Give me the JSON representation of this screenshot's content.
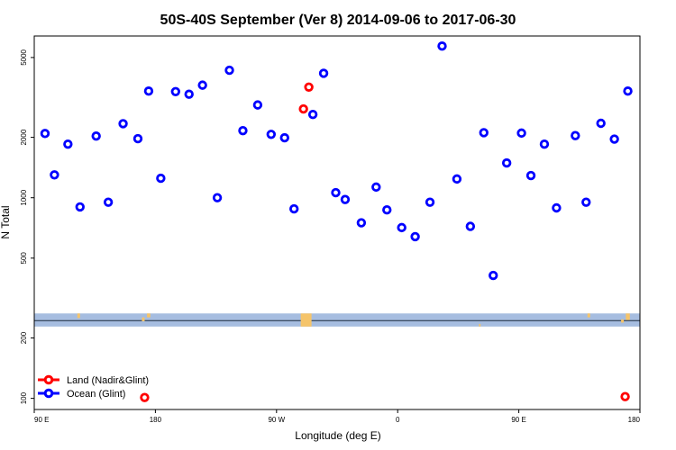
{
  "chart_data": {
    "type": "scatter",
    "title": "50S-40S September (Ver 8)   2014-09-06 to 2017-06-30",
    "xlabel": "Longitude (deg E)",
    "ylabel": "N Total",
    "x_ticks": [
      {
        "value": 90,
        "label": "90 E"
      },
      {
        "value": 180,
        "label": "180"
      },
      {
        "value": 270,
        "label": "90 W"
      },
      {
        "value": 360,
        "label": "0"
      },
      {
        "value": 450,
        "label": "90 E"
      },
      {
        "value": 540,
        "label": "180"
      }
    ],
    "xlim": [
      90,
      540
    ],
    "ylog": true,
    "ylim": [
      88,
      6400
    ],
    "y_ticks": [
      {
        "value": 100,
        "label": "100"
      },
      {
        "value": 200,
        "label": "200"
      },
      {
        "value": 500,
        "label": "500"
      },
      {
        "value": 1000,
        "label": "1000"
      },
      {
        "value": 2000,
        "label": "2000"
      },
      {
        "value": 5000,
        "label": "5000"
      }
    ],
    "map_strip": {
      "lat_range": "50S-40S",
      "y_range": [
        228,
        265
      ]
    },
    "legend": {
      "position": "bottom-left",
      "entries": [
        {
          "label": "Land (Nadir&Glint)",
          "color": "#ff0000"
        },
        {
          "label": "Ocean (Glint)",
          "color": "#0000ff"
        }
      ]
    },
    "series": [
      {
        "name": "Ocean (Glint)",
        "color": "#0000ff",
        "points": [
          {
            "x": 98,
            "y": 2090
          },
          {
            "x": 105,
            "y": 1300
          },
          {
            "x": 115,
            "y": 1850
          },
          {
            "x": 124,
            "y": 900
          },
          {
            "x": 136,
            "y": 2030
          },
          {
            "x": 145,
            "y": 950
          },
          {
            "x": 156,
            "y": 2340
          },
          {
            "x": 167,
            "y": 1970
          },
          {
            "x": 175,
            "y": 3400
          },
          {
            "x": 184,
            "y": 1250
          },
          {
            "x": 195,
            "y": 3380
          },
          {
            "x": 205,
            "y": 3280
          },
          {
            "x": 215,
            "y": 3640
          },
          {
            "x": 226,
            "y": 1000
          },
          {
            "x": 235,
            "y": 4320
          },
          {
            "x": 245,
            "y": 2160
          },
          {
            "x": 256,
            "y": 2900
          },
          {
            "x": 266,
            "y": 2070
          },
          {
            "x": 276,
            "y": 1990
          },
          {
            "x": 283,
            "y": 880
          },
          {
            "x": 297,
            "y": 2600
          },
          {
            "x": 305,
            "y": 4170
          },
          {
            "x": 314,
            "y": 1060
          },
          {
            "x": 321,
            "y": 980
          },
          {
            "x": 333,
            "y": 750
          },
          {
            "x": 344,
            "y": 1130
          },
          {
            "x": 352,
            "y": 870
          },
          {
            "x": 363,
            "y": 710
          },
          {
            "x": 373,
            "y": 640
          },
          {
            "x": 384,
            "y": 950
          },
          {
            "x": 393,
            "y": 5700
          },
          {
            "x": 404,
            "y": 1240
          },
          {
            "x": 414,
            "y": 720
          },
          {
            "x": 424,
            "y": 2110
          },
          {
            "x": 431,
            "y": 410
          },
          {
            "x": 441,
            "y": 1490
          },
          {
            "x": 452,
            "y": 2100
          },
          {
            "x": 459,
            "y": 1290
          },
          {
            "x": 469,
            "y": 1850
          },
          {
            "x": 478,
            "y": 890
          },
          {
            "x": 492,
            "y": 2040
          },
          {
            "x": 500,
            "y": 950
          },
          {
            "x": 511,
            "y": 2350
          },
          {
            "x": 521,
            "y": 1960
          },
          {
            "x": 531,
            "y": 3400
          }
        ]
      },
      {
        "name": "Land (Nadir&Glint)",
        "color": "#ff0000",
        "points": [
          {
            "x": 290,
            "y": 2770
          },
          {
            "x": 294,
            "y": 3560
          },
          {
            "x": 172,
            "y": 101
          },
          {
            "x": 529,
            "y": 102
          }
        ]
      }
    ]
  }
}
